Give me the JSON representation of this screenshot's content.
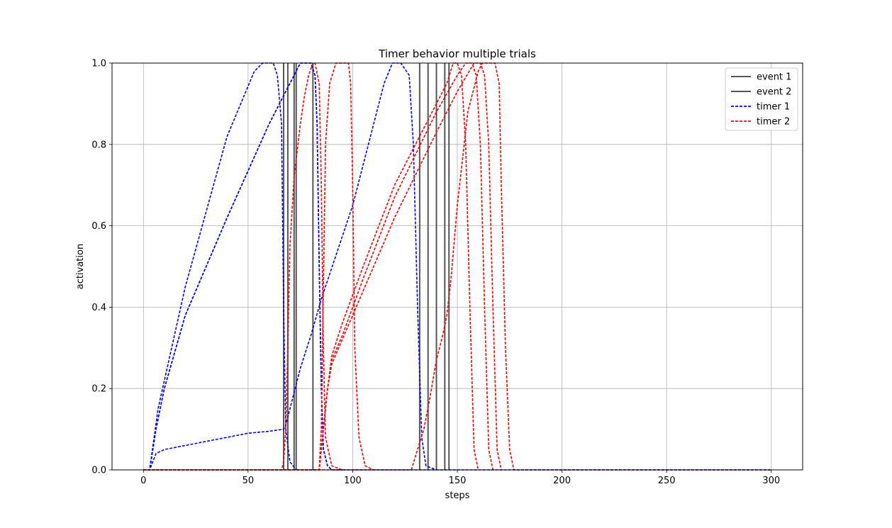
{
  "chart_data": {
    "type": "line",
    "title": "Timer behavior multiple trials",
    "xlabel": "steps",
    "ylabel": "activation",
    "xlim": [
      -15,
      315
    ],
    "ylim": [
      0,
      1
    ],
    "xticks": [
      0,
      50,
      100,
      150,
      200,
      250,
      300
    ],
    "yticks": [
      0.0,
      0.2,
      0.4,
      0.6,
      0.8,
      1.0
    ],
    "grid": true,
    "legend_position": "top-right",
    "legend": [
      {
        "label": "event 1",
        "color": "#555555",
        "style": "solid"
      },
      {
        "label": "event 2",
        "color": "#555555",
        "style": "solid"
      },
      {
        "label": "timer 1",
        "color": "#0000ff",
        "style": "dashed"
      },
      {
        "label": "timer 2",
        "color": "#ff0000",
        "style": "dashed"
      }
    ],
    "event_lines": [
      {
        "series": "event 1",
        "x": [
          67,
          69,
          72,
          73
        ]
      },
      {
        "series": "event 2",
        "x": [
          81,
          132,
          136,
          140,
          144,
          146
        ]
      }
    ],
    "series": [
      {
        "name": "timer 1",
        "color": "#0000ff",
        "trial": 1,
        "x": [
          0,
          3,
          7,
          20,
          40,
          53,
          57,
          62,
          64,
          66,
          67,
          68,
          70,
          73
        ],
        "y": [
          0,
          0,
          0.15,
          0.45,
          0.82,
          0.98,
          1.0,
          1.0,
          0.97,
          0.85,
          0.4,
          0.1,
          0.02,
          0
        ]
      },
      {
        "name": "timer 1",
        "color": "#0000ff",
        "trial": 2,
        "x": [
          0,
          3,
          6,
          10,
          20,
          40,
          60,
          70,
          75,
          78,
          80,
          82,
          83,
          84,
          85,
          86,
          88,
          90,
          95
        ],
        "y": [
          0,
          0,
          0.1,
          0.2,
          0.38,
          0.62,
          0.85,
          0.95,
          1.0,
          1.0,
          1.0,
          0.97,
          0.85,
          0.5,
          0.2,
          0.05,
          0.01,
          0,
          0
        ]
      },
      {
        "name": "timer 1",
        "color": "#0000ff",
        "trial": 3,
        "x": [
          0,
          3,
          6,
          10,
          20,
          40,
          60,
          72,
          75,
          78,
          80,
          82,
          83,
          84,
          85,
          86,
          88,
          90,
          95
        ],
        "y": [
          0,
          0,
          0.1,
          0.2,
          0.38,
          0.62,
          0.85,
          0.97,
          1.0,
          1.0,
          1.0,
          0.97,
          0.85,
          0.5,
          0.2,
          0.05,
          0.01,
          0,
          0
        ]
      },
      {
        "name": "timer 1",
        "color": "#0000ff",
        "trial": 4,
        "x": [
          0,
          3,
          6,
          10,
          30,
          50,
          60,
          67,
          68,
          70,
          75,
          80,
          85,
          100,
          115,
          119,
          123,
          127,
          129,
          131,
          133,
          135,
          140
        ],
        "y": [
          0,
          0,
          0.04,
          0.05,
          0.07,
          0.09,
          0.095,
          0.1,
          0.11,
          0.15,
          0.25,
          0.33,
          0.42,
          0.65,
          0.95,
          1.0,
          1.0,
          0.97,
          0.8,
          0.4,
          0.08,
          0.01,
          0
        ]
      },
      {
        "name": "timer 2",
        "color": "#ff0000",
        "trial": 1,
        "x": [
          0,
          66,
          67,
          68,
          69,
          70,
          72,
          75,
          77,
          79,
          81,
          82,
          84,
          85,
          86,
          87,
          90,
          95
        ],
        "y": [
          0,
          0,
          0.02,
          0.1,
          0.3,
          0.55,
          0.72,
          0.85,
          0.92,
          0.97,
          1.0,
          1.0,
          0.95,
          0.7,
          0.3,
          0.08,
          0.01,
          0
        ]
      },
      {
        "name": "timer 2",
        "color": "#ff0000",
        "trial": 2,
        "x": [
          0,
          84,
          85,
          86,
          87,
          89,
          92,
          95,
          98,
          99,
          100,
          101,
          103,
          106,
          110
        ],
        "y": [
          0,
          0,
          0.1,
          0.45,
          0.8,
          0.95,
          1.0,
          1.0,
          1.0,
          0.95,
          0.7,
          0.3,
          0.08,
          0.01,
          0
        ]
      },
      {
        "name": "timer 2",
        "color": "#ff0000",
        "trial": 3,
        "x": [
          0,
          84,
          86,
          88,
          90,
          95,
          105,
          120,
          135,
          145,
          148,
          150,
          152,
          154,
          156,
          158,
          160
        ],
        "y": [
          0,
          0,
          0.1,
          0.2,
          0.28,
          0.36,
          0.5,
          0.7,
          0.85,
          0.95,
          1.0,
          1.0,
          0.97,
          0.8,
          0.4,
          0.05,
          0
        ]
      },
      {
        "name": "timer 2",
        "color": "#ff0000",
        "trial": 4,
        "x": [
          0,
          84,
          86,
          88,
          90,
          95,
          105,
          120,
          140,
          150,
          154,
          157,
          159,
          161,
          163,
          165,
          167
        ],
        "y": [
          0,
          0,
          0.1,
          0.2,
          0.27,
          0.33,
          0.47,
          0.67,
          0.88,
          0.97,
          1.0,
          1.0,
          0.97,
          0.8,
          0.4,
          0.05,
          0
        ]
      },
      {
        "name": "timer 2",
        "color": "#ff0000",
        "trial": 5,
        "x": [
          0,
          84,
          86,
          88,
          90,
          95,
          105,
          120,
          140,
          150,
          158,
          161,
          163,
          165,
          167,
          169,
          171
        ],
        "y": [
          0,
          0,
          0.1,
          0.2,
          0.26,
          0.32,
          0.44,
          0.62,
          0.83,
          0.93,
          1.0,
          1.0,
          0.97,
          0.8,
          0.4,
          0.05,
          0
        ]
      },
      {
        "name": "timer 2",
        "color": "#ff0000",
        "trial": 6,
        "x": [
          0,
          128,
          131,
          134,
          137,
          140,
          143,
          145,
          147,
          150,
          155,
          160,
          162,
          164,
          166,
          168,
          170,
          171,
          173,
          175,
          177,
          300
        ],
        "y": [
          0,
          0,
          0.05,
          0.1,
          0.18,
          0.27,
          0.33,
          0.38,
          0.47,
          0.65,
          0.88,
          0.98,
          1.0,
          1.0,
          1.0,
          1.0,
          0.95,
          0.7,
          0.3,
          0.05,
          0,
          0
        ]
      },
      {
        "name": "timer 1",
        "color": "#0000ff",
        "trial": 5,
        "x": [
          95,
          300
        ],
        "y": [
          0,
          0
        ]
      }
    ]
  }
}
